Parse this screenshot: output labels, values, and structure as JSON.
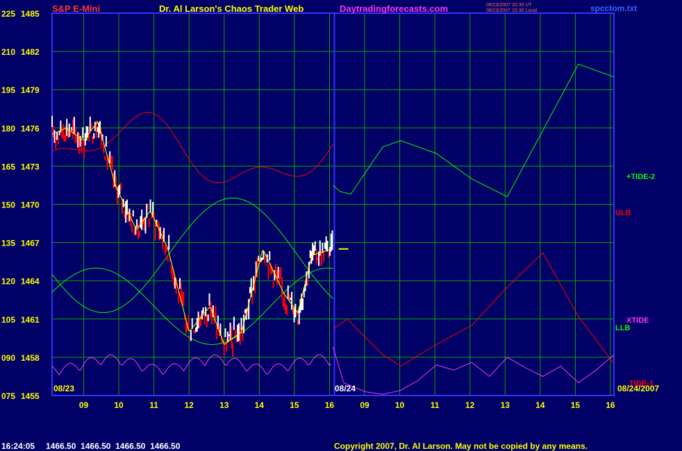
{
  "header": {
    "instrument": "S&P E-Mini",
    "title": "Dr. Al Larson's Chaos Trader Web",
    "site": "Daytradingforecasts.com",
    "stamp_ut": "08/23/2007 20:30 UT",
    "stamp_local": "08/23/2007 15:30 Local",
    "file": "spcctom.txt"
  },
  "footer": {
    "time": "16:24:05",
    "quotes": "1466.50  1466.50  1466.50  1466.50",
    "copyright": "Copyright 2007, Dr. Al Larson. May not be copied by any means."
  },
  "colors": {
    "background": "#000066",
    "grid": "#00aa00",
    "frame": "#3333ff",
    "title": "#ffff00",
    "instrument": "#ff3333",
    "site": "#ff33ff",
    "tide2": "#00ff00",
    "ulb": "#ff0000",
    "llb": "#00ff00",
    "xtide": "#ff33ff",
    "tide1": "#ff0000",
    "price_up": "#ffffff",
    "price_down": "#ff0000",
    "avg": "#ffff00"
  },
  "chart_data": {
    "type": "line",
    "y_left_ticks": [
      "225",
      "210",
      "195",
      "180",
      "165",
      "150",
      "135",
      "120",
      "105",
      "090",
      "075"
    ],
    "y_right_ticks": [
      "1485",
      "1482",
      "1479",
      "1476",
      "1473",
      "1470",
      "1467",
      "1464",
      "1461",
      "1458",
      "1455"
    ],
    "ylim_price": [
      1455,
      1485
    ],
    "ylim_osc": [
      75,
      225
    ],
    "x_ticks_day1": [
      "09",
      "10",
      "11",
      "12",
      "13",
      "14",
      "15",
      "16"
    ],
    "x_ticks_day2": [
      "09",
      "10",
      "11",
      "12",
      "13",
      "14",
      "15",
      "16"
    ],
    "date_start": "08/23",
    "date_mid": "08/24",
    "date_end": "08/24/2007",
    "last_price": 1466.5,
    "legend": {
      "tide2": "+TIDE-2",
      "ulb": "ULB",
      "xtide": "XTIDE",
      "llb": "LLB",
      "tide1": "TIDE-1"
    },
    "series": [
      {
        "key": "tide2_forecast",
        "x": [
          16.1,
          16.3,
          16.6,
          17.5,
          18.0,
          19.0,
          20.0,
          21.0,
          22.0,
          23.0,
          24.0
        ],
        "y": [
          1471.5,
          1471.0,
          1470.8,
          1474.5,
          1475.0,
          1474.0,
          1472.0,
          1470.6,
          1475.8,
          1481.0,
          1480.0
        ]
      },
      {
        "key": "ulb_forecast",
        "x": [
          16.1,
          16.5,
          17.0,
          17.5,
          18.0,
          19.0,
          20.0,
          21.0,
          22.0,
          23.0,
          24.0
        ],
        "y": [
          1460.2,
          1461.0,
          1459.6,
          1458.2,
          1457.3,
          1459.0,
          1460.5,
          1463.5,
          1466.2,
          1461.2,
          1457.5
        ]
      },
      {
        "key": "xtide_forecast",
        "x": [
          16.1,
          16.4,
          17.0,
          17.5,
          18.0,
          18.5,
          19.0,
          19.5,
          20.0,
          20.5,
          21.0,
          21.5,
          22.0,
          22.5,
          23.0,
          23.5,
          24.0
        ],
        "y": [
          1458.8,
          1456.0,
          1455.3,
          1455.1,
          1455.4,
          1456.2,
          1457.4,
          1457.0,
          1457.6,
          1456.5,
          1458.0,
          1457.2,
          1456.5,
          1457.3,
          1456.0,
          1457.0,
          1458.2
        ]
      }
    ]
  }
}
